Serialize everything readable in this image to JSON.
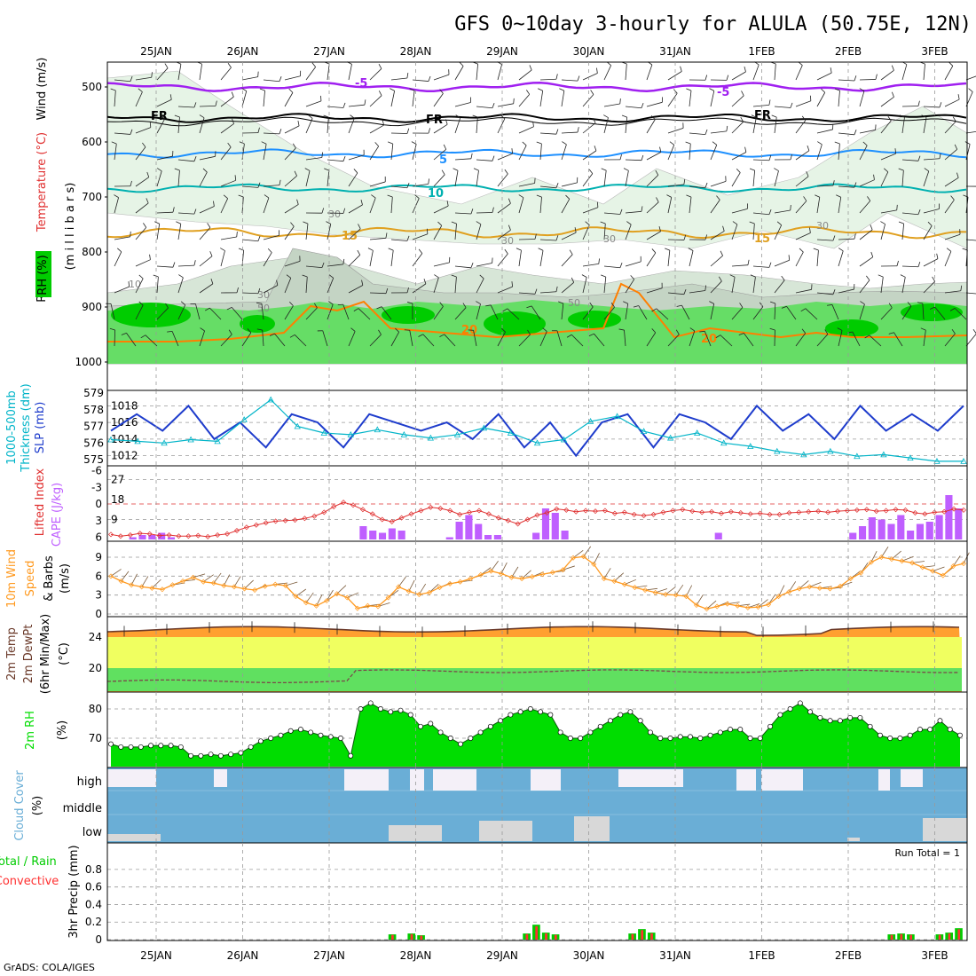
{
  "title": "GFS 0~10day 3-hourly for ALULA (50.75E, 12N)",
  "credit": "GrADS: COLA/IGES",
  "date_labels": [
    "25JAN",
    "26JAN",
    "27JAN",
    "28JAN",
    "29JAN",
    "30JAN",
    "31JAN",
    "1FEB",
    "2FEB",
    "3FEB"
  ],
  "colors": {
    "wind_temp": "#a020f0",
    "fr": "#000000",
    "t5": "#1e90ff",
    "t10": "#00b0b0",
    "t15": "#e0a020",
    "t20": "#ff7f00",
    "rh_dark": "#00cc00",
    "rh_mid": "#66dd66",
    "rh_light": "#ccf0cc",
    "slp": "#1e3ccc",
    "thick": "#00b4c8",
    "cape": "#bf5fff",
    "li": "#e03030",
    "wind10": "#ff9a20",
    "temp_fill": "#ffa030",
    "dew_fill": "#f0ff60",
    "green_fill": "#60e060",
    "rh2m": "#00dd00",
    "cloud": "#6aaed6",
    "cloud_bg": "#f4f0f8",
    "cloud_low": "#d8d8d8",
    "precip_total": "#00cc00",
    "precip_conv": "#ff3030"
  },
  "panels": {
    "upper": {
      "ylabels": [
        "RH (%)",
        "Temperature (°C)",
        "Wind (m/s)",
        "(m i l l i b a r s)"
      ],
      "yticks": [
        "500",
        "600",
        "700",
        "800",
        "900",
        "1000"
      ],
      "contour_labels": [
        "-5",
        "FR",
        "5",
        "10",
        "15",
        "20"
      ],
      "rh_labels": [
        "10",
        "30",
        "50"
      ]
    },
    "slp": {
      "ylabels": [
        "1000-500mb",
        "Thickness (dm)",
        "SLP (mb)"
      ],
      "yticks_left": [
        "575",
        "576",
        "577",
        "578",
        "579"
      ],
      "yticks_right": [
        "1012",
        "1014",
        "1016",
        "1018"
      ]
    },
    "cape": {
      "ylabels": [
        "Lifted Index",
        "CAPE (J/kg)"
      ],
      "yticks_left": [
        "-6",
        "-3",
        "0",
        "3",
        "6"
      ],
      "yticks_right": [
        "9",
        "18",
        "27"
      ]
    },
    "wind10": {
      "ylabels": [
        "10m Wind",
        "Speed",
        "& Barbs",
        "(m/s)"
      ],
      "yticks": [
        "0",
        "3",
        "6",
        "9"
      ]
    },
    "temp2m": {
      "ylabels": [
        "2m Temp",
        "2m DewPt",
        "(6hr Min/Max)",
        "(°C)"
      ],
      "yticks": [
        "20",
        "24"
      ]
    },
    "rh2m": {
      "ylabels": [
        "2m RH",
        "(%)"
      ],
      "yticks": [
        "70",
        "80"
      ]
    },
    "cloud": {
      "ylabels": [
        "Cloud Cover",
        "(%)"
      ],
      "levels": [
        "high",
        "middle",
        "low"
      ]
    },
    "precip": {
      "ylabels": [
        "Total / Rain",
        "Convective",
        "3hr Precip (mm)"
      ],
      "yticks": [
        "0",
        "0.2",
        "0.4",
        "0.6",
        "0.8"
      ],
      "run_total": "Run Total = 1"
    }
  },
  "chart_data": [
    {
      "type": "line",
      "name": "SLP (mb)",
      "x_start": "25JAN",
      "x_step_hours": 12,
      "values": [
        1015,
        1017,
        1015,
        1018,
        1014,
        1016,
        1013,
        1017,
        1016,
        1013,
        1017,
        1016,
        1015,
        1016,
        1014,
        1017,
        1013,
        1016,
        1012,
        1016,
        1017,
        1013,
        1017,
        1016,
        1014,
        1018,
        1015,
        1017,
        1014,
        1018,
        1015,
        1017,
        1015,
        1018
      ]
    },
    {
      "type": "line",
      "name": "1000-500mb Thickness (dm)",
      "x_start": "25JAN",
      "x_step_hours": 12,
      "values": [
        576.2,
        576.1,
        576.0,
        576.2,
        576.1,
        577.4,
        578.6,
        577.0,
        576.6,
        576.5,
        576.8,
        576.5,
        576.3,
        576.5,
        576.9,
        576.6,
        576.0,
        576.2,
        577.3,
        577.6,
        576.7,
        576.3,
        576.6,
        576.0,
        575.8,
        575.5,
        575.3,
        575.5,
        575.2,
        575.3,
        575.1,
        574.9,
        574.9
      ]
    },
    {
      "type": "bar",
      "name": "CAPE (J/kg)",
      "x_start": "25JAN",
      "x_step_hours": 3,
      "values": [
        0,
        0,
        1,
        2,
        2,
        3,
        1,
        0,
        0,
        0,
        0,
        0,
        0,
        0,
        0,
        0,
        0,
        0,
        0,
        0,
        0,
        0,
        0,
        0,
        0,
        0,
        6,
        4,
        3,
        5,
        4,
        0,
        0,
        0,
        0,
        1,
        8,
        11,
        7,
        2,
        2,
        0,
        0,
        0,
        3,
        14,
        12,
        4,
        0,
        0,
        0,
        0,
        0,
        0,
        0,
        0,
        0,
        0,
        0,
        0,
        0,
        0,
        0,
        3,
        0,
        0,
        0,
        0,
        0,
        0,
        0,
        0,
        0,
        0,
        0,
        0,
        0,
        3,
        6,
        10,
        9,
        7,
        11,
        4,
        7,
        8,
        11,
        20,
        14
      ]
    },
    {
      "type": "line",
      "name": "Lifted Index",
      "x_start": "25JAN",
      "x_step_hours": 3,
      "values": [
        5.5,
        5.8,
        5.6,
        5.3,
        5.4,
        5.7,
        5.6,
        5.8,
        5.8,
        5.7,
        5.9,
        5.6,
        5.4,
        4.8,
        4.2,
        3.8,
        3.4,
        3.1,
        3.0,
        2.9,
        2.6,
        2.2,
        1.5,
        0.5,
        -0.3,
        0.2,
        1.0,
        1.8,
        2.8,
        3.2,
        2.5,
        1.8,
        1.2,
        0.6,
        0.8,
        1.2,
        1.9,
        1.5,
        1.2,
        1.8,
        2.5,
        3.0,
        3.6,
        2.8,
        2.0,
        1.6,
        0.9,
        1.1,
        1.4,
        1.2,
        1.3,
        1.2,
        1.7,
        1.5,
        1.9,
        2.1,
        1.9,
        1.5,
        1.2,
        1.0,
        1.3,
        1.5,
        1.4,
        1.7,
        1.4,
        1.6,
        1.8,
        1.7,
        1.9,
        1.9,
        1.6,
        1.5,
        1.4,
        1.3,
        1.5,
        1.3,
        1.2,
        1.1,
        1.0,
        1.3,
        1.2,
        1.0,
        1.1,
        1.6,
        1.8,
        1.5,
        1.4,
        0.9,
        1.1
      ]
    },
    {
      "type": "line",
      "name": "10m Wind Speed (m/s)",
      "x_start": "25JAN",
      "x_step_hours": 3,
      "values": [
        6.0,
        5.2,
        4.6,
        4.3,
        4.1,
        3.9,
        4.6,
        5.2,
        5.8,
        5.1,
        4.9,
        4.5,
        4.3,
        4.0,
        3.8,
        4.4,
        4.7,
        4.5,
        2.8,
        1.8,
        1.3,
        2.1,
        3.2,
        2.6,
        0.9,
        1.3,
        1.2,
        2.6,
        4.3,
        3.6,
        3.1,
        3.4,
        4.2,
        4.8,
        5.1,
        5.6,
        6.2,
        6.8,
        6.4,
        5.8,
        5.6,
        5.9,
        6.3,
        6.6,
        7.0,
        8.9,
        9.1,
        7.9,
        5.6,
        5.2,
        4.7,
        4.2,
        3.8,
        3.4,
        3.1,
        3.0,
        2.8,
        1.4,
        0.8,
        1.2,
        1.6,
        1.3,
        1.0,
        1.1,
        1.5,
        2.8,
        3.5,
        4.0,
        4.3,
        4.1,
        4.0,
        4.4,
        5.6,
        6.5,
        8.2,
        9.0,
        8.7,
        8.4,
        8.1,
        7.4,
        6.8,
        6.1,
        7.6,
        8.0
      ]
    },
    {
      "type": "line",
      "name": "2m RH (%)",
      "x_start": "25JAN",
      "x_step_hours": 3,
      "values": [
        68,
        67,
        67,
        67,
        67.5,
        67.5,
        67.5,
        67,
        64,
        64,
        64.5,
        64,
        64.5,
        65,
        67,
        69,
        70,
        71,
        72.5,
        73,
        72,
        71,
        70.5,
        70,
        64,
        80,
        82,
        80,
        79,
        79.5,
        78,
        74,
        75,
        72,
        70,
        68,
        70,
        72,
        74,
        76,
        78,
        79,
        80,
        79,
        78,
        72,
        70,
        70,
        72,
        74,
        76,
        78,
        79,
        76,
        72,
        70,
        70,
        70.5,
        70.5,
        70,
        71,
        72,
        73,
        73,
        70,
        70,
        74,
        78,
        80,
        82,
        79,
        77,
        76,
        76,
        77,
        77,
        74,
        71,
        70,
        70,
        71,
        73,
        73,
        76,
        73,
        71
      ]
    },
    {
      "type": "bar",
      "name": "3hr Precip (mm)",
      "x_start": "25JAN",
      "x_step_hours": 3,
      "values": [
        0,
        0,
        0,
        0,
        0,
        0,
        0,
        0,
        0,
        0,
        0,
        0,
        0,
        0,
        0,
        0,
        0,
        0,
        0,
        0,
        0,
        0,
        0,
        0,
        0,
        0,
        0,
        0,
        0,
        0.06,
        0,
        0.07,
        0.05,
        0,
        0,
        0,
        0,
        0,
        0,
        0,
        0,
        0,
        0,
        0.07,
        0.17,
        0.08,
        0.06,
        0,
        0,
        0,
        0,
        0,
        0,
        0,
        0.07,
        0.12,
        0.08,
        0,
        0,
        0,
        0,
        0,
        0,
        0,
        0,
        0,
        0,
        0,
        0,
        0,
        0,
        0,
        0,
        0,
        0,
        0,
        0,
        0,
        0,
        0,
        0,
        0.06,
        0.07,
        0.06,
        0,
        0,
        0.06,
        0.08,
        0.13
      ]
    }
  ]
}
